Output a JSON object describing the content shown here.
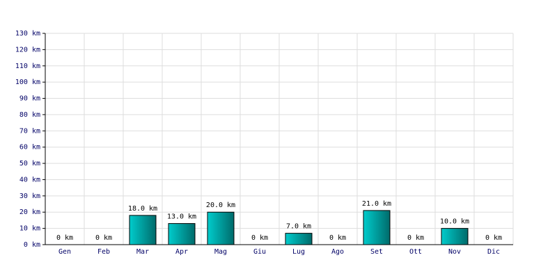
{
  "chart_data": {
    "type": "bar",
    "categories": [
      "Gen",
      "Feb",
      "Mar",
      "Apr",
      "Mag",
      "Giu",
      "Lug",
      "Ago",
      "Set",
      "Ott",
      "Nov",
      "Dic"
    ],
    "values": [
      0,
      0,
      18,
      13,
      20,
      0,
      7,
      0,
      21,
      0,
      10,
      0
    ],
    "value_labels": [
      "0 km",
      "0 km",
      "18.0 km",
      "13.0 km",
      "20.0 km",
      "0 km",
      "7.0 km",
      "0 km",
      "21.0 km",
      "0 km",
      "10.0 km",
      "0 km"
    ],
    "color": "#00cccc",
    "ylim": [
      0,
      130
    ],
    "yticks": [
      {
        "value": 0,
        "label": "0 km"
      },
      {
        "value": 10,
        "label": "10 km"
      },
      {
        "value": 20,
        "label": "20 km"
      },
      {
        "value": 30,
        "label": "30 km"
      },
      {
        "value": 40,
        "label": "40 km"
      },
      {
        "value": 50,
        "label": "50 km"
      },
      {
        "value": 60,
        "label": "60 km"
      },
      {
        "value": 70,
        "label": "70 km"
      },
      {
        "value": 80,
        "label": "80 km"
      },
      {
        "value": 90,
        "label": "90 km"
      },
      {
        "value": 100,
        "label": "100 km"
      },
      {
        "value": 110,
        "label": "110 km"
      },
      {
        "value": 120,
        "label": "120 km"
      },
      {
        "value": 130,
        "label": "130 km"
      }
    ],
    "grid": true
  }
}
